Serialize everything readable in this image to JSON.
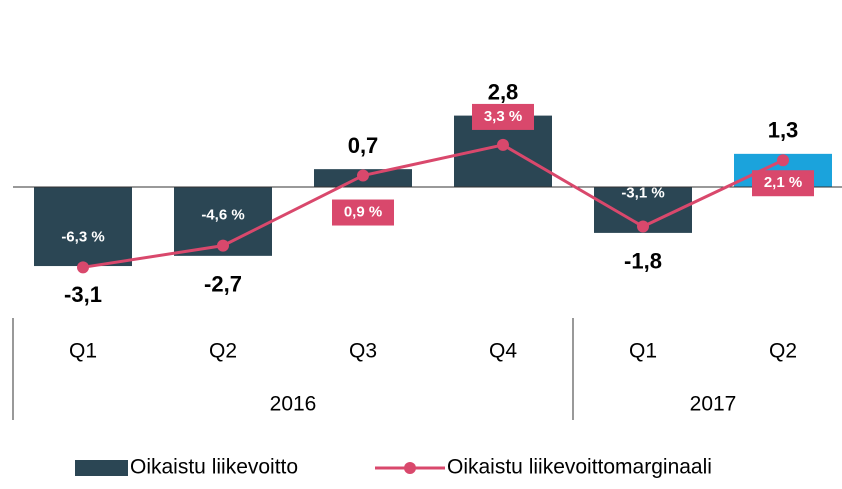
{
  "chart_data": {
    "type": "bar_line",
    "categories": [
      "Q1",
      "Q2",
      "Q3",
      "Q4",
      "Q1",
      "Q2"
    ],
    "category_groups": [
      "2016",
      "2016",
      "2016",
      "2016",
      "2017",
      "2017"
    ],
    "series": [
      {
        "name": "Oikaistu liikevoitto",
        "type": "bar",
        "color": "#2b4654",
        "colors": [
          "#2b4654",
          "#2b4654",
          "#2b4654",
          "#2b4654",
          "#2b4654",
          "#1ba3dc"
        ],
        "values": [
          -3.1,
          -2.7,
          0.7,
          2.8,
          -1.8,
          1.3
        ],
        "value_labels": [
          "-3,1",
          "-2,7",
          "0,7",
          "2,8",
          "-1,8",
          "1,3"
        ]
      },
      {
        "name": "Oikaistu liikevoittomarginaali",
        "type": "line",
        "axis": "y2",
        "color": "#d9486c",
        "values": [
          -6.3,
          -4.6,
          0.9,
          3.3,
          -3.1,
          2.1
        ],
        "value_labels": [
          "-6,3 %",
          "-4,6 %",
          "0,9 %",
          "3,3 %",
          "-3,1 %",
          "2,1 %"
        ]
      }
    ],
    "ylim": [
      -4,
      4
    ],
    "y2lim": [
      -8,
      8
    ],
    "legend": "bottom"
  }
}
